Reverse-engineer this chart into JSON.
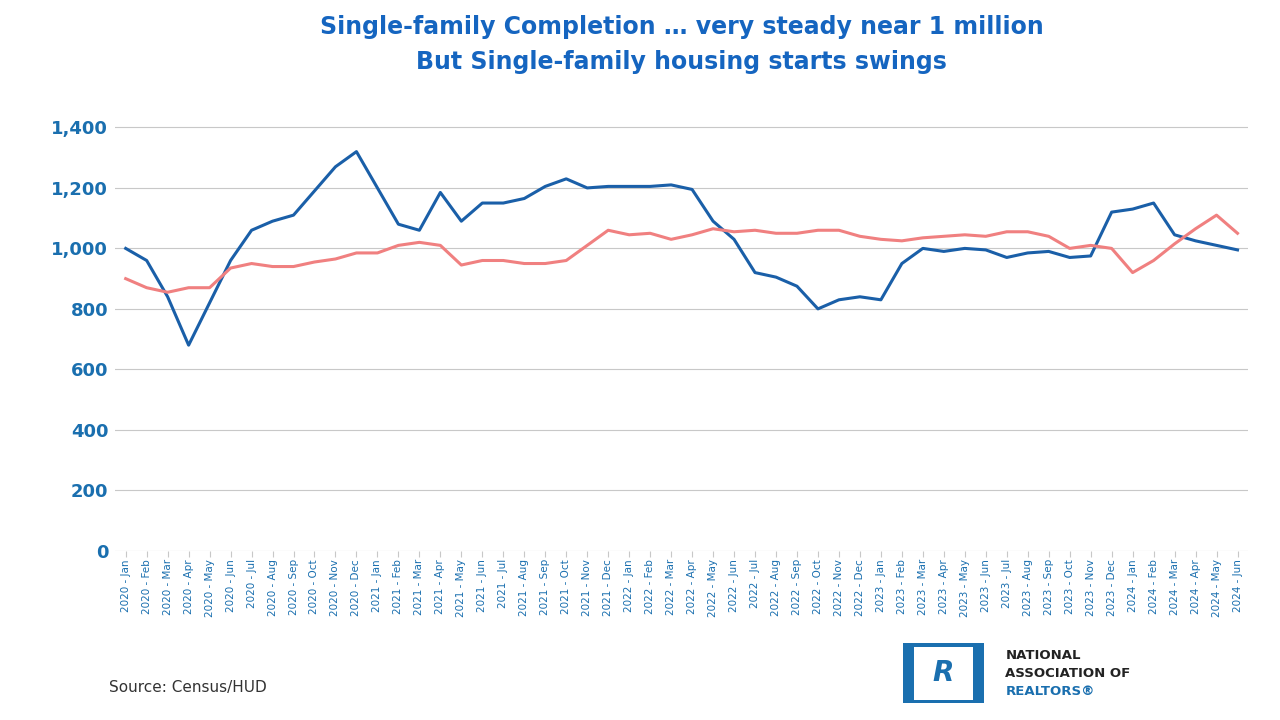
{
  "title_line1": "Single-family Completion … very steady near 1 million",
  "title_line2": "But Single-family housing starts swings",
  "title_color": "#1565c0",
  "source_text": "Source: Census/HUD",
  "background_color": "#ffffff",
  "axis_color": "#1a6faf",
  "grid_color": "#c8c8c8",
  "starts_color": "#1a5fa8",
  "completions_color": "#f08080",
  "ylim": [
    0,
    1500
  ],
  "yticks": [
    0,
    200,
    400,
    600,
    800,
    1000,
    1200,
    1400
  ],
  "labels": [
    "2020 - Jan",
    "2020 - Feb",
    "2020 - Mar",
    "2020 - Apr",
    "2020 - May",
    "2020 - Jun",
    "2020 - Jul",
    "2020 - Aug",
    "2020 - Sep",
    "2020 - Oct",
    "2020 - Nov",
    "2020 - Dec",
    "2021 - Jan",
    "2021 - Feb",
    "2021 - Mar",
    "2021 - Apr",
    "2021 - May",
    "2021 - Jun",
    "2021 - Jul",
    "2021 - Aug",
    "2021 - Sep",
    "2021 - Oct",
    "2021 - Nov",
    "2021 - Dec",
    "2022 - Jan",
    "2022 - Feb",
    "2022 - Mar",
    "2022 - Apr",
    "2022 - May",
    "2022 - Jun",
    "2022 - Jul",
    "2022 - Aug",
    "2022 - Sep",
    "2022 - Oct",
    "2022 - Nov",
    "2022 - Dec",
    "2023 - Jan",
    "2023 - Feb",
    "2023 - Mar",
    "2023 - Apr",
    "2023 - May",
    "2023 - Jun",
    "2023 - Jul",
    "2023 - Aug",
    "2023 - Sep",
    "2023 - Oct",
    "2023 - Nov",
    "2023 - Dec",
    "2024 - Jan",
    "2024 - Feb",
    "2024 - Mar",
    "2024 - Apr",
    "2024 - May",
    "2024 - Jun"
  ],
  "starts": [
    1000,
    960,
    840,
    680,
    820,
    960,
    1060,
    1090,
    1110,
    1190,
    1270,
    1320,
    1200,
    1080,
    1060,
    1185,
    1090,
    1150,
    1150,
    1165,
    1205,
    1230,
    1200,
    1205,
    1205,
    1205,
    1210,
    1195,
    1090,
    1030,
    920,
    905,
    875,
    800,
    830,
    840,
    830,
    950,
    1000,
    990,
    1000,
    995,
    970,
    985,
    990,
    970,
    975,
    1120,
    1130,
    1150,
    1045,
    1025,
    1010,
    995
  ],
  "completions": [
    900,
    870,
    855,
    870,
    870,
    935,
    950,
    940,
    940,
    955,
    965,
    985,
    985,
    1010,
    1020,
    1010,
    945,
    960,
    960,
    950,
    950,
    960,
    1010,
    1060,
    1045,
    1050,
    1030,
    1045,
    1065,
    1055,
    1060,
    1050,
    1050,
    1060,
    1060,
    1040,
    1030,
    1025,
    1035,
    1040,
    1045,
    1040,
    1055,
    1055,
    1040,
    1000,
    1010,
    1000,
    920,
    960,
    1015,
    1065,
    1110,
    1050
  ]
}
